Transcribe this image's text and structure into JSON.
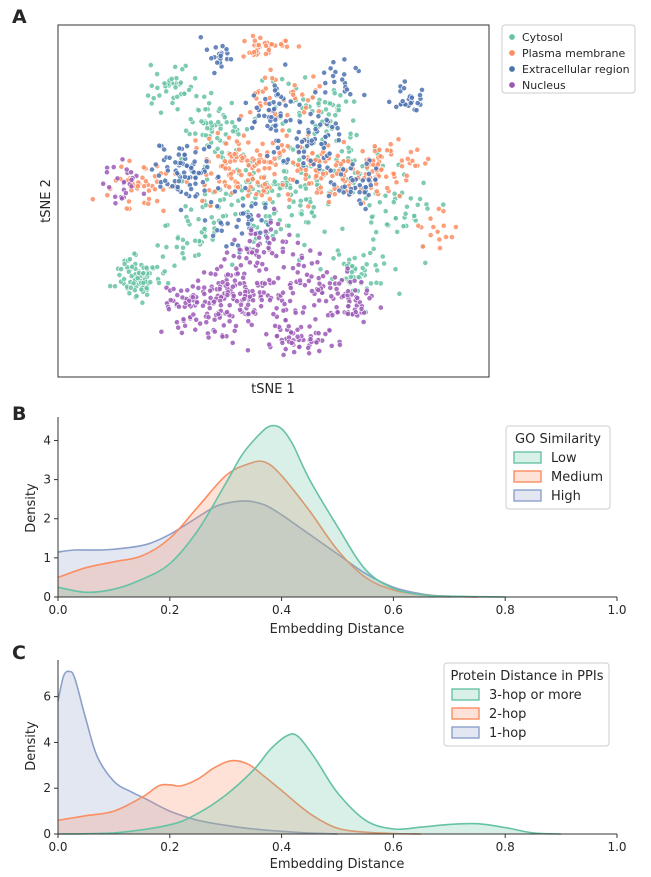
{
  "chart_data": [
    {
      "type": "scatter",
      "panel": "A",
      "title": "",
      "xlabel": "tSNE 1",
      "ylabel": "tSNE 2",
      "xlim": [
        0,
        100
      ],
      "ylim": [
        0,
        100
      ],
      "ticks_visible": false,
      "legend_position": "outside-top-right",
      "series": [
        {
          "name": "Cytosol",
          "color": "#66c2a5",
          "clusters": [
            {
              "cx": 18,
              "cy": 28,
              "sx": 2.5,
              "sy": 3,
              "n": 90
            },
            {
              "cx": 27,
              "cy": 84,
              "sx": 3,
              "sy": 3,
              "n": 40
            },
            {
              "cx": 36,
              "cy": 70,
              "sx": 4,
              "sy": 5,
              "n": 60
            },
            {
              "cx": 47,
              "cy": 50,
              "sx": 8,
              "sy": 6,
              "n": 120
            },
            {
              "cx": 62,
              "cy": 62,
              "sx": 6,
              "sy": 6,
              "n": 90
            },
            {
              "cx": 70,
              "cy": 30,
              "sx": 4,
              "sy": 4,
              "n": 50
            },
            {
              "cx": 80,
              "cy": 48,
              "sx": 4,
              "sy": 5,
              "n": 40
            },
            {
              "cx": 30,
              "cy": 40,
              "sx": 4,
              "sy": 4,
              "n": 40
            },
            {
              "cx": 58,
              "cy": 80,
              "sx": 5,
              "sy": 4,
              "n": 40
            }
          ]
        },
        {
          "name": "Plasma membrane",
          "color": "#fc8d62",
          "clusters": [
            {
              "cx": 48,
              "cy": 95,
              "sx": 2.5,
              "sy": 1.5,
              "n": 35
            },
            {
              "cx": 42,
              "cy": 60,
              "sx": 6,
              "sy": 5,
              "n": 100
            },
            {
              "cx": 63,
              "cy": 58,
              "sx": 8,
              "sy": 5,
              "n": 110
            },
            {
              "cx": 18,
              "cy": 55,
              "sx": 4,
              "sy": 4,
              "n": 45
            },
            {
              "cx": 78,
              "cy": 60,
              "sx": 4,
              "sy": 5,
              "n": 40
            },
            {
              "cx": 52,
              "cy": 80,
              "sx": 5,
              "sy": 4,
              "n": 35
            },
            {
              "cx": 88,
              "cy": 42,
              "sx": 3,
              "sy": 3,
              "n": 15
            }
          ]
        },
        {
          "name": "Extracellular region",
          "color": "#4c72b0",
          "clusters": [
            {
              "cx": 37,
              "cy": 93,
              "sx": 1.5,
              "sy": 2,
              "n": 20
            },
            {
              "cx": 30,
              "cy": 58,
              "sx": 4,
              "sy": 4,
              "n": 80
            },
            {
              "cx": 50,
              "cy": 74,
              "sx": 3,
              "sy": 5,
              "n": 45
            },
            {
              "cx": 60,
              "cy": 66,
              "sx": 4,
              "sy": 5,
              "n": 60
            },
            {
              "cx": 70,
              "cy": 55,
              "sx": 3,
              "sy": 3,
              "n": 35
            },
            {
              "cx": 82,
              "cy": 80,
              "sx": 2,
              "sy": 2,
              "n": 25
            },
            {
              "cx": 42,
              "cy": 45,
              "sx": 4,
              "sy": 4,
              "n": 40
            },
            {
              "cx": 65,
              "cy": 85,
              "sx": 3,
              "sy": 3,
              "n": 20
            }
          ]
        },
        {
          "name": "Nucleus",
          "color": "#9b59b6",
          "clusters": [
            {
              "cx": 42,
              "cy": 22,
              "sx": 7,
              "sy": 5,
              "n": 170
            },
            {
              "cx": 55,
              "cy": 10,
              "sx": 4,
              "sy": 2.5,
              "n": 55
            },
            {
              "cx": 60,
              "cy": 25,
              "sx": 5,
              "sy": 4,
              "n": 60
            },
            {
              "cx": 68,
              "cy": 20,
              "sx": 3,
              "sy": 3,
              "n": 35
            },
            {
              "cx": 30,
              "cy": 20,
              "sx": 3,
              "sy": 3,
              "n": 40
            },
            {
              "cx": 14,
              "cy": 55,
              "sx": 2.5,
              "sy": 3,
              "n": 25
            },
            {
              "cx": 48,
              "cy": 36,
              "sx": 4,
              "sy": 4,
              "n": 50
            }
          ]
        }
      ]
    },
    {
      "type": "area",
      "panel": "B",
      "xlabel": "Embedding Distance",
      "ylabel": "Density",
      "xlim": [
        0.0,
        1.0
      ],
      "ylim": [
        0,
        4.6
      ],
      "xticks": [
        "0.0",
        "0.2",
        "0.4",
        "0.6",
        "0.8",
        "1.0"
      ],
      "yticks": [
        "0",
        "1",
        "2",
        "3",
        "4"
      ],
      "xtick_values": [
        0.0,
        0.2,
        0.4,
        0.6,
        0.8,
        1.0
      ],
      "ytick_values": [
        0,
        1,
        2,
        3,
        4
      ],
      "legend_title": "GO Similarity",
      "legend_position": "top-right",
      "series": [
        {
          "name": "Low",
          "color": "#66c2a5",
          "x": [
            0,
            0.05,
            0.1,
            0.15,
            0.2,
            0.25,
            0.3,
            0.33,
            0.36,
            0.38,
            0.4,
            0.42,
            0.45,
            0.5,
            0.55,
            0.6,
            0.65,
            0.7,
            0.8
          ],
          "y": [
            0.25,
            0.12,
            0.2,
            0.45,
            0.85,
            1.7,
            2.9,
            3.65,
            4.15,
            4.37,
            4.3,
            3.9,
            3.0,
            1.8,
            0.7,
            0.22,
            0.06,
            0.02,
            0.0
          ]
        },
        {
          "name": "Medium",
          "color": "#fc8d62",
          "x": [
            0,
            0.05,
            0.1,
            0.15,
            0.2,
            0.25,
            0.3,
            0.34,
            0.37,
            0.4,
            0.45,
            0.5,
            0.55,
            0.6,
            0.65,
            0.7,
            0.75
          ],
          "y": [
            0.5,
            0.75,
            0.9,
            1.05,
            1.5,
            2.3,
            3.1,
            3.4,
            3.45,
            3.1,
            2.2,
            1.2,
            0.5,
            0.18,
            0.06,
            0.02,
            0.0
          ]
        },
        {
          "name": "High",
          "color": "#8da0cb",
          "x": [
            0,
            0.03,
            0.08,
            0.12,
            0.16,
            0.2,
            0.24,
            0.28,
            0.31,
            0.34,
            0.37,
            0.4,
            0.45,
            0.5,
            0.55,
            0.6,
            0.65,
            0.7
          ],
          "y": [
            1.15,
            1.2,
            1.2,
            1.25,
            1.35,
            1.6,
            1.95,
            2.3,
            2.42,
            2.45,
            2.35,
            2.1,
            1.6,
            1.1,
            0.6,
            0.25,
            0.08,
            0.0
          ]
        }
      ]
    },
    {
      "type": "area",
      "panel": "C",
      "xlabel": "Embedding Distance",
      "ylabel": "Density",
      "xlim": [
        0.0,
        1.0
      ],
      "ylim": [
        0,
        7.6
      ],
      "xticks": [
        "0.0",
        "0.2",
        "0.4",
        "0.6",
        "0.8",
        "1.0"
      ],
      "yticks": [
        "0",
        "2",
        "4",
        "6"
      ],
      "xtick_values": [
        0.0,
        0.2,
        0.4,
        0.6,
        0.8,
        1.0
      ],
      "ytick_values": [
        0,
        2,
        4,
        6
      ],
      "legend_title": "Protein Distance in PPIs",
      "legend_position": "top-right",
      "series": [
        {
          "name": "3-hop or more",
          "color": "#66c2a5",
          "x": [
            0,
            0.1,
            0.2,
            0.25,
            0.3,
            0.35,
            0.38,
            0.41,
            0.43,
            0.46,
            0.5,
            0.55,
            0.6,
            0.65,
            0.7,
            0.75,
            0.8,
            0.85,
            0.9
          ],
          "y": [
            0.0,
            0.05,
            0.4,
            0.9,
            1.7,
            2.8,
            3.7,
            4.3,
            4.25,
            3.3,
            1.8,
            0.6,
            0.22,
            0.3,
            0.42,
            0.45,
            0.28,
            0.05,
            0.0
          ]
        },
        {
          "name": "2-hop",
          "color": "#fc8d62",
          "x": [
            0,
            0.05,
            0.1,
            0.15,
            0.18,
            0.2,
            0.22,
            0.25,
            0.28,
            0.31,
            0.34,
            0.37,
            0.4,
            0.45,
            0.5,
            0.55,
            0.6,
            0.65
          ],
          "y": [
            0.6,
            0.8,
            1.0,
            1.6,
            2.1,
            2.15,
            2.1,
            2.4,
            2.9,
            3.2,
            3.05,
            2.5,
            1.9,
            0.9,
            0.25,
            0.08,
            0.02,
            0.0
          ]
        },
        {
          "name": "1-hop",
          "color": "#8da0cb",
          "x": [
            0,
            0.01,
            0.02,
            0.03,
            0.05,
            0.07,
            0.1,
            0.13,
            0.16,
            0.2,
            0.25,
            0.3,
            0.35,
            0.4,
            0.45,
            0.5
          ],
          "y": [
            5.8,
            6.9,
            7.1,
            6.8,
            5.0,
            3.4,
            2.3,
            1.85,
            1.5,
            1.0,
            0.6,
            0.38,
            0.22,
            0.12,
            0.04,
            0.0
          ]
        }
      ]
    }
  ]
}
